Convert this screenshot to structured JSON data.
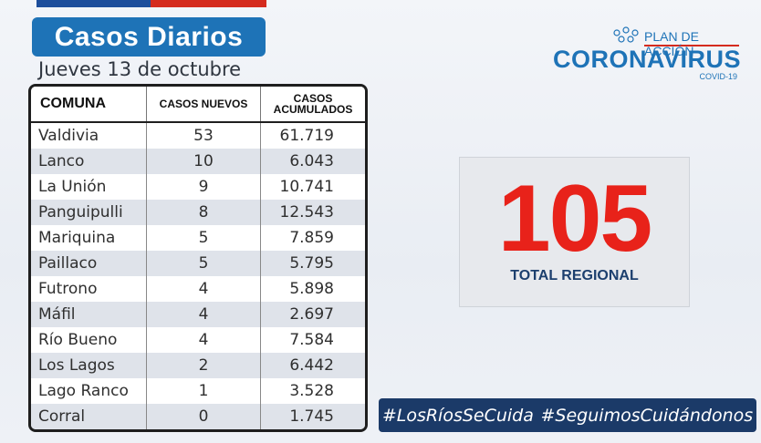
{
  "header": {
    "title": "Casos Diarios",
    "date": "Jueves 13 de octubre"
  },
  "logo": {
    "plan": "PLAN DE ACCIÓN",
    "name": "CORONAVIRUS",
    "sub": "COVID-19"
  },
  "table": {
    "headers": [
      "COMUNA",
      "CASOS NUEVOS",
      "CASOS ACUMULADOS"
    ],
    "rows": [
      [
        "Valdivia",
        "53",
        "61.719"
      ],
      [
        "Lanco",
        "10",
        "6.043"
      ],
      [
        "La Unión",
        "9",
        "10.741"
      ],
      [
        "Panguipulli",
        "8",
        "12.543"
      ],
      [
        "Mariquina",
        "5",
        "7.859"
      ],
      [
        "Paillaco",
        "5",
        "5.795"
      ],
      [
        "Futrono",
        "4",
        "5.898"
      ],
      [
        "Máfil",
        "4",
        "2.697"
      ],
      [
        "Río Bueno",
        "4",
        "7.584"
      ],
      [
        "Los Lagos",
        "2",
        "6.442"
      ],
      [
        "Lago Ranco",
        "1",
        "3.528"
      ],
      [
        "Corral",
        "0",
        "1.745"
      ]
    ]
  },
  "total": {
    "value": "105",
    "label": "TOTAL REGIONAL"
  },
  "hashtags": [
    "#LosRíosSeCuida",
    "#SeguimosCuidándonos"
  ],
  "colors": {
    "accent_blue": "#1e73b7",
    "navy": "#1b3a68",
    "red": "#e8221a"
  }
}
